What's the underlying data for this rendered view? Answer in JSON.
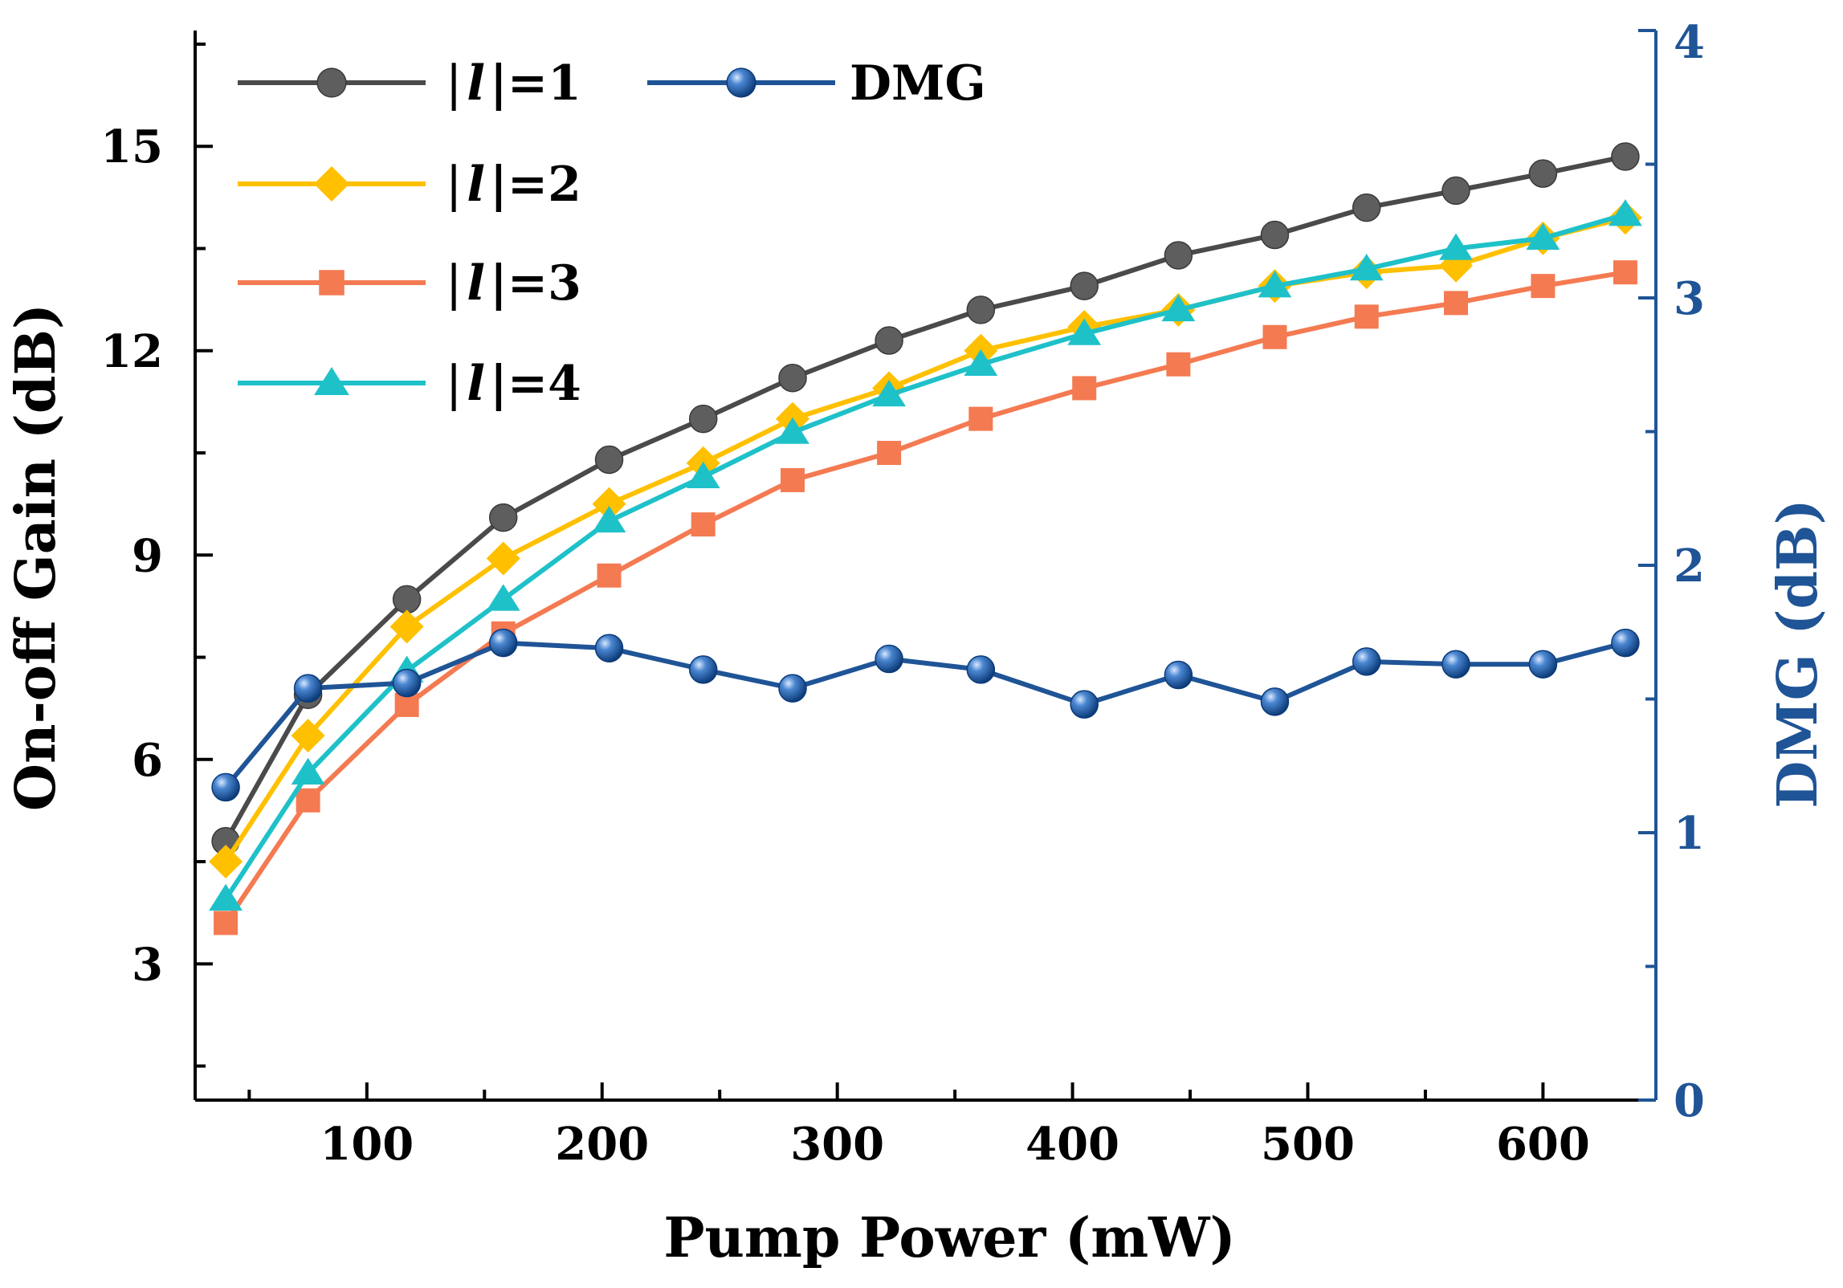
{
  "chart_data": {
    "type": "line",
    "x": [
      40,
      75,
      117,
      158,
      203,
      243,
      281,
      322,
      361,
      405,
      445,
      486,
      525,
      563,
      600,
      635
    ],
    "xlabel": "Pump Power (mW)",
    "ylabel": "On-off Gain (dB)",
    "y2label": "DMG (dB)",
    "xlim": [
      27,
      648
    ],
    "ylim": [
      1.0,
      16.7
    ],
    "y2lim": [
      0,
      4
    ],
    "xticks": [
      100,
      200,
      300,
      400,
      500,
      600
    ],
    "yticks": [
      3,
      6,
      9,
      12,
      15
    ],
    "y2ticks": [
      0,
      1,
      2,
      3,
      4
    ],
    "grid": false,
    "legend_position": "top-left",
    "series": [
      {
        "name": "|l|=1",
        "legend_prefix": "|",
        "legend_symbol": "l",
        "legend_suffix": "|=1",
        "axis": "left",
        "marker": "circle",
        "color": "#4a4a4a",
        "marker_color": "#5e5e5e",
        "values": [
          4.8,
          6.95,
          8.35,
          9.55,
          10.4,
          11.0,
          11.6,
          12.15,
          12.6,
          12.95,
          13.4,
          13.7,
          14.1,
          14.35,
          14.6,
          14.85
        ]
      },
      {
        "name": "|l|=2",
        "legend_prefix": "|",
        "legend_symbol": "l",
        "legend_suffix": "|=2",
        "axis": "left",
        "marker": "diamond",
        "color": "#ffc000",
        "marker_color": "#ffc000",
        "values": [
          4.5,
          6.35,
          7.95,
          8.95,
          9.75,
          10.35,
          11.0,
          11.45,
          12.0,
          12.35,
          12.6,
          12.95,
          13.15,
          13.25,
          13.65,
          13.95
        ]
      },
      {
        "name": "|l|=3",
        "legend_prefix": "|",
        "legend_symbol": "l",
        "legend_suffix": "|=3",
        "axis": "left",
        "marker": "square",
        "color": "#f47a52",
        "marker_color": "#f47a52",
        "values": [
          3.6,
          5.4,
          6.8,
          7.85,
          8.7,
          9.45,
          10.1,
          10.5,
          11.0,
          11.45,
          11.8,
          12.2,
          12.5,
          12.7,
          12.95,
          13.15
        ]
      },
      {
        "name": "|l|=4",
        "legend_prefix": "|",
        "legend_symbol": "l",
        "legend_suffix": "|=4",
        "axis": "left",
        "marker": "triangle",
        "color": "#1fc1c9",
        "marker_color": "#1fc1c9",
        "values": [
          3.95,
          5.8,
          7.3,
          8.35,
          9.5,
          10.15,
          10.8,
          11.35,
          11.8,
          12.25,
          12.6,
          12.95,
          13.2,
          13.5,
          13.65,
          14.0
        ]
      },
      {
        "name": "DMG",
        "axis": "right",
        "marker": "sphere",
        "color": "#1f5496",
        "marker_color": "#1f5496",
        "values": [
          1.17,
          1.54,
          1.56,
          1.71,
          1.69,
          1.61,
          1.54,
          1.65,
          1.61,
          1.48,
          1.59,
          1.49,
          1.64,
          1.63,
          1.63,
          1.71
        ]
      }
    ]
  },
  "colors": {
    "axis": "#000000",
    "right_axis": "#1f5496"
  }
}
